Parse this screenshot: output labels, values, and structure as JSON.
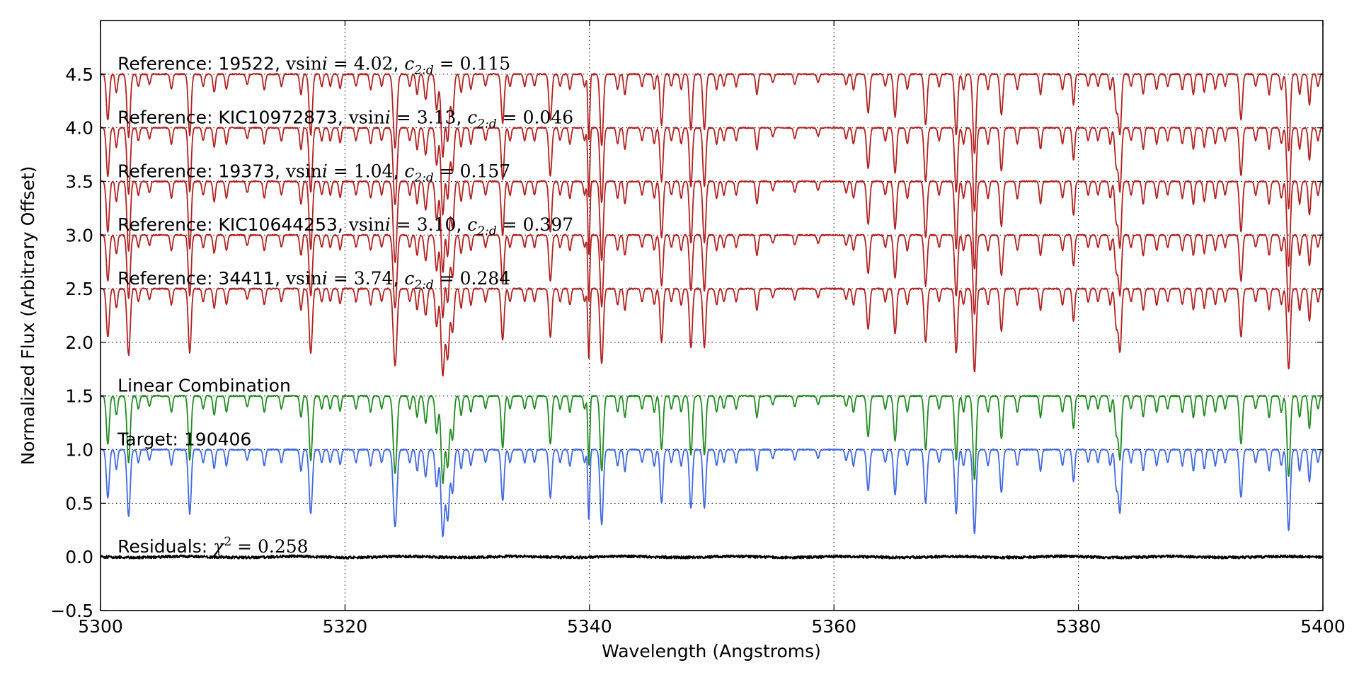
{
  "chart_data": {
    "type": "line",
    "title": "",
    "xlabel": "Wavelength (Angstroms)",
    "ylabel": "Normalized Flux (Arbitrary Offset)",
    "xlim": [
      5300,
      5400
    ],
    "ylim": [
      -0.5,
      5.0
    ],
    "xticks": [
      5300,
      5320,
      5340,
      5360,
      5380,
      5400
    ],
    "xtick_labels": [
      "5300",
      "5320",
      "5340",
      "5360",
      "5380",
      "5400"
    ],
    "yticks": [
      -0.5,
      0.0,
      0.5,
      1.0,
      1.5,
      2.0,
      2.5,
      3.0,
      3.5,
      4.0,
      4.5
    ],
    "ytick_labels": [
      "−0.5",
      "0.0",
      "0.5",
      "1.0",
      "1.5",
      "2.0",
      "2.5",
      "3.0",
      "3.5",
      "4.0",
      "4.5"
    ],
    "grid": true,
    "grid_style": "dotted",
    "line_colors": {
      "reference": "#b22222",
      "linear_combination": "#228b22",
      "target": "#4169e1",
      "residuals": "#000000"
    },
    "absorption_lines": [
      {
        "x": 5300.6,
        "depth": 0.45,
        "w": 0.12
      },
      {
        "x": 5301.3,
        "depth": 0.18,
        "w": 0.1
      },
      {
        "x": 5302.3,
        "depth": 0.62,
        "w": 0.13
      },
      {
        "x": 5303.1,
        "depth": 0.12,
        "w": 0.1
      },
      {
        "x": 5304.0,
        "depth": 0.1,
        "w": 0.1
      },
      {
        "x": 5305.8,
        "depth": 0.15,
        "w": 0.1
      },
      {
        "x": 5307.3,
        "depth": 0.6,
        "w": 0.12
      },
      {
        "x": 5308.4,
        "depth": 0.12,
        "w": 0.1
      },
      {
        "x": 5309.3,
        "depth": 0.18,
        "w": 0.1
      },
      {
        "x": 5310.3,
        "depth": 0.15,
        "w": 0.1
      },
      {
        "x": 5312.0,
        "depth": 0.1,
        "w": 0.1
      },
      {
        "x": 5313.4,
        "depth": 0.15,
        "w": 0.1
      },
      {
        "x": 5314.8,
        "depth": 0.12,
        "w": 0.1
      },
      {
        "x": 5316.4,
        "depth": 0.2,
        "w": 0.1
      },
      {
        "x": 5317.2,
        "depth": 0.6,
        "w": 0.13
      },
      {
        "x": 5318.1,
        "depth": 0.12,
        "w": 0.1
      },
      {
        "x": 5318.8,
        "depth": 0.12,
        "w": 0.1
      },
      {
        "x": 5319.6,
        "depth": 0.14,
        "w": 0.1
      },
      {
        "x": 5320.9,
        "depth": 0.12,
        "w": 0.1
      },
      {
        "x": 5322.1,
        "depth": 0.15,
        "w": 0.1
      },
      {
        "x": 5323.0,
        "depth": 0.12,
        "w": 0.1
      },
      {
        "x": 5324.1,
        "depth": 0.72,
        "w": 0.15
      },
      {
        "x": 5325.3,
        "depth": 0.12,
        "w": 0.1
      },
      {
        "x": 5325.9,
        "depth": 0.2,
        "w": 0.1
      },
      {
        "x": 5326.6,
        "depth": 0.25,
        "w": 0.12
      },
      {
        "x": 5327.5,
        "depth": 0.35,
        "w": 0.12
      },
      {
        "x": 5328.0,
        "depth": 0.8,
        "w": 0.14
      },
      {
        "x": 5328.4,
        "depth": 0.65,
        "w": 0.14
      },
      {
        "x": 5328.8,
        "depth": 0.4,
        "w": 0.12
      },
      {
        "x": 5329.5,
        "depth": 0.18,
        "w": 0.1
      },
      {
        "x": 5330.3,
        "depth": 0.15,
        "w": 0.1
      },
      {
        "x": 5331.5,
        "depth": 0.12,
        "w": 0.1
      },
      {
        "x": 5332.9,
        "depth": 0.48,
        "w": 0.12
      },
      {
        "x": 5333.5,
        "depth": 0.12,
        "w": 0.1
      },
      {
        "x": 5334.7,
        "depth": 0.12,
        "w": 0.1
      },
      {
        "x": 5335.5,
        "depth": 0.12,
        "w": 0.1
      },
      {
        "x": 5336.8,
        "depth": 0.45,
        "w": 0.12
      },
      {
        "x": 5337.6,
        "depth": 0.12,
        "w": 0.1
      },
      {
        "x": 5338.4,
        "depth": 0.15,
        "w": 0.1
      },
      {
        "x": 5339.6,
        "depth": 0.12,
        "w": 0.1
      },
      {
        "x": 5339.95,
        "depth": 0.65,
        "w": 0.08
      },
      {
        "x": 5341.0,
        "depth": 0.7,
        "w": 0.13
      },
      {
        "x": 5342.3,
        "depth": 0.15,
        "w": 0.1
      },
      {
        "x": 5342.9,
        "depth": 0.2,
        "w": 0.1
      },
      {
        "x": 5344.3,
        "depth": 0.12,
        "w": 0.1
      },
      {
        "x": 5345.3,
        "depth": 0.15,
        "w": 0.1
      },
      {
        "x": 5345.9,
        "depth": 0.5,
        "w": 0.12
      },
      {
        "x": 5346.7,
        "depth": 0.12,
        "w": 0.1
      },
      {
        "x": 5347.5,
        "depth": 0.15,
        "w": 0.1
      },
      {
        "x": 5348.3,
        "depth": 0.55,
        "w": 0.12
      },
      {
        "x": 5349.4,
        "depth": 0.55,
        "w": 0.12
      },
      {
        "x": 5350.4,
        "depth": 0.15,
        "w": 0.1
      },
      {
        "x": 5351.0,
        "depth": 0.12,
        "w": 0.1
      },
      {
        "x": 5352.0,
        "depth": 0.12,
        "w": 0.1
      },
      {
        "x": 5353.7,
        "depth": 0.2,
        "w": 0.1
      },
      {
        "x": 5355.0,
        "depth": 0.08,
        "w": 0.1
      },
      {
        "x": 5356.8,
        "depth": 0.1,
        "w": 0.1
      },
      {
        "x": 5358.7,
        "depth": 0.08,
        "w": 0.1
      },
      {
        "x": 5361.0,
        "depth": 0.1,
        "w": 0.1
      },
      {
        "x": 5361.6,
        "depth": 0.15,
        "w": 0.1
      },
      {
        "x": 5362.8,
        "depth": 0.38,
        "w": 0.12
      },
      {
        "x": 5364.2,
        "depth": 0.12,
        "w": 0.1
      },
      {
        "x": 5365.0,
        "depth": 0.42,
        "w": 0.12
      },
      {
        "x": 5366.0,
        "depth": 0.15,
        "w": 0.1
      },
      {
        "x": 5367.5,
        "depth": 0.5,
        "w": 0.12
      },
      {
        "x": 5368.6,
        "depth": 0.12,
        "w": 0.1
      },
      {
        "x": 5370.0,
        "depth": 0.6,
        "w": 0.12
      },
      {
        "x": 5370.6,
        "depth": 0.15,
        "w": 0.1
      },
      {
        "x": 5371.5,
        "depth": 0.78,
        "w": 0.13
      },
      {
        "x": 5372.6,
        "depth": 0.15,
        "w": 0.1
      },
      {
        "x": 5373.7,
        "depth": 0.4,
        "w": 0.12
      },
      {
        "x": 5375.0,
        "depth": 0.15,
        "w": 0.1
      },
      {
        "x": 5376.9,
        "depth": 0.2,
        "w": 0.1
      },
      {
        "x": 5378.7,
        "depth": 0.15,
        "w": 0.1
      },
      {
        "x": 5379.6,
        "depth": 0.3,
        "w": 0.1
      },
      {
        "x": 5380.8,
        "depth": 0.12,
        "w": 0.1
      },
      {
        "x": 5381.6,
        "depth": 0.12,
        "w": 0.1
      },
      {
        "x": 5382.6,
        "depth": 0.15,
        "w": 0.1
      },
      {
        "x": 5383.1,
        "depth": 0.35,
        "w": 0.12
      },
      {
        "x": 5383.4,
        "depth": 0.58,
        "w": 0.12
      },
      {
        "x": 5384.3,
        "depth": 0.12,
        "w": 0.1
      },
      {
        "x": 5385.3,
        "depth": 0.2,
        "w": 0.1
      },
      {
        "x": 5386.4,
        "depth": 0.15,
        "w": 0.1
      },
      {
        "x": 5387.3,
        "depth": 0.12,
        "w": 0.1
      },
      {
        "x": 5388.5,
        "depth": 0.15,
        "w": 0.1
      },
      {
        "x": 5389.4,
        "depth": 0.2,
        "w": 0.1
      },
      {
        "x": 5390.3,
        "depth": 0.18,
        "w": 0.1
      },
      {
        "x": 5391.2,
        "depth": 0.15,
        "w": 0.1
      },
      {
        "x": 5392.0,
        "depth": 0.12,
        "w": 0.1
      },
      {
        "x": 5393.3,
        "depth": 0.45,
        "w": 0.12
      },
      {
        "x": 5394.5,
        "depth": 0.12,
        "w": 0.1
      },
      {
        "x": 5395.6,
        "depth": 0.2,
        "w": 0.1
      },
      {
        "x": 5396.6,
        "depth": 0.15,
        "w": 0.1
      },
      {
        "x": 5397.2,
        "depth": 0.75,
        "w": 0.13
      },
      {
        "x": 5398.1,
        "depth": 0.2,
        "w": 0.1
      },
      {
        "x": 5398.9,
        "depth": 0.3,
        "w": 0.1
      },
      {
        "x": 5399.6,
        "depth": 0.12,
        "w": 0.1
      }
    ],
    "series": [
      {
        "role": "reference",
        "offset": 4.5,
        "label_y": 4.6,
        "label": "Reference: 19522, ",
        "vsini_value": "4.02",
        "c2d_value": "0.115",
        "color": "#b22222"
      },
      {
        "role": "reference",
        "offset": 4.0,
        "label_y": 4.1,
        "label": "Reference: KIC10972873, ",
        "vsini_value": "3.13",
        "c2d_value": "0.046",
        "color": "#b22222"
      },
      {
        "role": "reference",
        "offset": 3.5,
        "label_y": 3.6,
        "label": "Reference: 19373, ",
        "vsini_value": "1.04",
        "c2d_value": "0.157",
        "color": "#b22222"
      },
      {
        "role": "reference",
        "offset": 3.0,
        "label_y": 3.1,
        "label": "Reference: KIC10644253, ",
        "vsini_value": "3.10",
        "c2d_value": "0.397",
        "color": "#b22222"
      },
      {
        "role": "reference",
        "offset": 2.5,
        "label_y": 2.6,
        "label": "Reference: 34411, ",
        "vsini_value": "3.74",
        "c2d_value": "0.284",
        "color": "#b22222"
      },
      {
        "role": "linear_combination",
        "offset": 1.5,
        "label_y": 1.6,
        "label": "Linear Combination",
        "color": "#228b22"
      },
      {
        "role": "target",
        "offset": 1.0,
        "label_y": 1.1,
        "label": "Target: 190406",
        "color": "#4169e1"
      },
      {
        "role": "residuals",
        "offset": 0.0,
        "label_y": 0.1,
        "label": "Residuals: ",
        "chi2_value": "0.258",
        "color": "#000000"
      }
    ]
  }
}
